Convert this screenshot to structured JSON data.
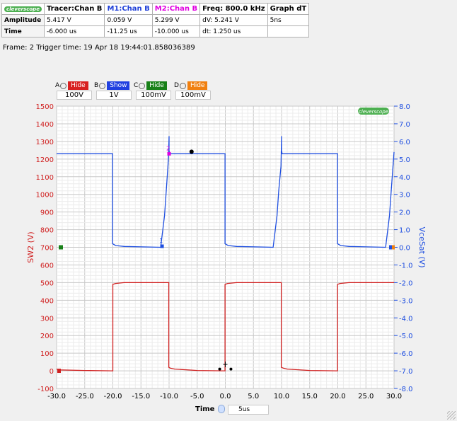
{
  "measurements": {
    "logo": "cleverscope",
    "headers": [
      "Tracer:Chan B",
      "M1:Chan B",
      "M2:Chan B",
      "Freq: 800.0 kHz",
      "Graph dT"
    ],
    "header_colors": [
      "#000000",
      "#1f3fd8",
      "#e000e0",
      "#000000",
      "#000000"
    ],
    "rows": [
      {
        "label": "Amplitude",
        "cells": [
          "5.417 V",
          "0.059 V",
          "5.299 V",
          "dV: 5.241 V",
          "5ns"
        ]
      },
      {
        "label": "Time",
        "cells": [
          "-6.000 us",
          "-11.25 us",
          "-10.000 us",
          "dt:  1.250 us",
          ""
        ]
      }
    ]
  },
  "frame_info": "Frame: 2   Trigger time: 19 Apr 18 19:44:01.858036389",
  "channels": [
    {
      "letter": "A",
      "state": "Hide",
      "color": "#d82020",
      "scale": "100V"
    },
    {
      "letter": "B",
      "state": "Show",
      "color": "#2040e0",
      "scale": "1V"
    },
    {
      "letter": "C",
      "state": "Hide",
      "color": "#188018",
      "scale": "100mV"
    },
    {
      "letter": "D",
      "state": "Hide",
      "color": "#f08010",
      "scale": "100mV"
    }
  ],
  "time_control": {
    "label": "Time",
    "value": "5us"
  },
  "plot_logo": "cleverscope",
  "chart_data": {
    "type": "line",
    "xlabel": "Time",
    "xlim": [
      -30,
      30
    ],
    "xticks": [
      "-30.0",
      "-25.0",
      "-20.0",
      "-15.0",
      "-10.0",
      "-5.0",
      "0.0",
      "5.0",
      "10.0",
      "15.0",
      "20.0",
      "25.0",
      "30.0"
    ],
    "ylabel_left": "SW2 (V)",
    "ylim_left": [
      -100,
      1500
    ],
    "yticks_left": [
      "1500",
      "1400",
      "1300",
      "1200",
      "1100",
      "1000",
      "900",
      "800",
      "700",
      "600",
      "500",
      "400",
      "300",
      "200",
      "100",
      "0",
      "-100"
    ],
    "ylabel_right": "VceSat (V)",
    "ylim_right": [
      -8,
      8
    ],
    "yticks_right": [
      "8.0",
      "7.0",
      "6.0",
      "5.0",
      "4.0",
      "3.0",
      "2.0",
      "1.0",
      "0.0",
      "-1.0",
      "-2.0",
      "-3.0",
      "-4.0",
      "-5.0",
      "-6.0",
      "-7.0",
      "-8.0"
    ],
    "grid": true,
    "series": [
      {
        "name": "SW2 (V)",
        "axis": "left",
        "color": "#d02020",
        "x": [
          -30,
          -29.5,
          -25,
          -20,
          -20,
          -19.5,
          -18,
          -10.05,
          -10.05,
          -9.8,
          -9,
          -5,
          -0.05,
          -0.05,
          0.4,
          2,
          9.95,
          9.95,
          10.3,
          11,
          15,
          19.95,
          19.95,
          20.4,
          22,
          30
        ],
        "y": [
          10,
          5,
          2,
          0,
          490,
          495,
          500,
          500,
          20,
          15,
          10,
          2,
          0,
          490,
          495,
          500,
          500,
          20,
          15,
          10,
          2,
          0,
          490,
          495,
          500,
          500
        ]
      },
      {
        "name": "VceSat (V)",
        "axis": "right",
        "color": "#1f4fe0",
        "x": [
          -30,
          -20.05,
          -20.05,
          -19.5,
          -18,
          -11.5,
          -10.8,
          -10.5,
          -10.2,
          -10.1,
          -10.0,
          -10.0,
          -9.9,
          -0.05,
          -0.05,
          0.5,
          2,
          8.5,
          9.2,
          9.5,
          9.9,
          10.0,
          10.0,
          10.1,
          19.95,
          19.95,
          20.5,
          22,
          28.5,
          29.2,
          29.5,
          30
        ],
        "y": [
          5.3,
          5.3,
          0.2,
          0.1,
          0.05,
          0.0,
          1.8,
          3.2,
          4.6,
          5.2,
          6.3,
          5.5,
          5.3,
          5.3,
          0.2,
          0.1,
          0.05,
          0.0,
          1.8,
          3.2,
          4.6,
          6.3,
          5.5,
          5.3,
          5.3,
          0.2,
          0.1,
          0.05,
          0.0,
          1.8,
          3.2,
          5.4
        ]
      }
    ],
    "markers": [
      {
        "label": "1",
        "series": "VceSat (V)",
        "x": -11.25,
        "y": 0.059
      },
      {
        "label": "2",
        "series": "VceSat (V)",
        "x": -10.0,
        "y": 5.299
      },
      {
        "label": "Tracer",
        "series": "VceSat (V)",
        "x": -6.0,
        "y": 5.417
      }
    ]
  }
}
